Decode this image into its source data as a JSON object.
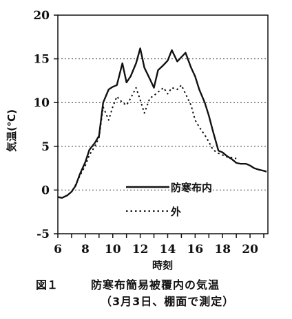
{
  "chart_data": {
    "type": "line",
    "xlabel": "時刻",
    "ylabel": "気温(℃)",
    "xlim": [
      6,
      21.3
    ],
    "ylim": [
      -5,
      20
    ],
    "xticks": [
      "6",
      "8",
      "10",
      "12",
      "14",
      "16",
      "18",
      "20"
    ],
    "yticks": [
      "-5",
      "0",
      "5",
      "10",
      "15",
      "20"
    ],
    "grid": "horizontal-dotted",
    "legend": "inside-bottom-center",
    "series": [
      {
        "name": "防寒布内",
        "style": "solid",
        "x": [
          6.0,
          6.3,
          6.7,
          7.0,
          7.3,
          7.6,
          8.0,
          8.3,
          8.7,
          9.0,
          9.3,
          9.7,
          10.0,
          10.3,
          10.7,
          11.0,
          11.3,
          11.7,
          12.0,
          12.3,
          12.7,
          13.0,
          13.3,
          13.7,
          14.0,
          14.3,
          14.7,
          15.0,
          15.3,
          15.7,
          16.0,
          16.3,
          16.7,
          17.0,
          17.3,
          17.7,
          18.0,
          18.3,
          18.7,
          19.0,
          19.3,
          19.7,
          20.0,
          20.3,
          20.7,
          21.0,
          21.2
        ],
        "y": [
          -0.8,
          -0.9,
          -0.6,
          -0.2,
          0.5,
          1.8,
          3.2,
          4.6,
          5.4,
          6.2,
          10.0,
          11.5,
          11.8,
          12.0,
          14.5,
          12.3,
          13.0,
          14.5,
          16.2,
          14.0,
          12.7,
          11.7,
          13.7,
          14.3,
          14.8,
          16.0,
          14.7,
          15.2,
          15.7,
          14.0,
          13.0,
          11.5,
          10.0,
          8.5,
          6.7,
          4.5,
          4.3,
          3.9,
          3.5,
          3.1,
          3.0,
          3.0,
          2.8,
          2.5,
          2.3,
          2.2,
          2.1
        ]
      },
      {
        "name": "外",
        "style": "dotted",
        "x": [
          6.0,
          6.3,
          6.7,
          7.0,
          7.3,
          7.6,
          8.0,
          8.3,
          8.7,
          9.0,
          9.3,
          9.7,
          10.0,
          10.3,
          10.7,
          11.0,
          11.3,
          11.7,
          12.0,
          12.3,
          12.7,
          13.0,
          13.3,
          13.7,
          14.0,
          14.3,
          14.7,
          15.0,
          15.3,
          15.7,
          16.0,
          16.3,
          16.7,
          17.0,
          17.3,
          17.7,
          18.0,
          18.3,
          18.7,
          19.0
        ],
        "y": [
          -0.8,
          -0.9,
          -0.6,
          -0.2,
          0.6,
          1.6,
          2.8,
          4.0,
          5.0,
          6.0,
          9.5,
          8.0,
          9.5,
          10.7,
          10.0,
          9.7,
          10.5,
          11.7,
          10.3,
          8.8,
          10.5,
          10.8,
          11.2,
          11.7,
          11.0,
          11.7,
          11.5,
          12.0,
          11.0,
          9.7,
          8.0,
          7.2,
          6.3,
          5.5,
          4.6,
          4.2,
          4.0,
          3.8,
          3.7,
          3.6
        ]
      }
    ]
  },
  "caption": {
    "figure_number": "図１",
    "title": "防寒布簡易被覆内の気温",
    "subtitle": "（3月3日、棚面で測定）"
  }
}
